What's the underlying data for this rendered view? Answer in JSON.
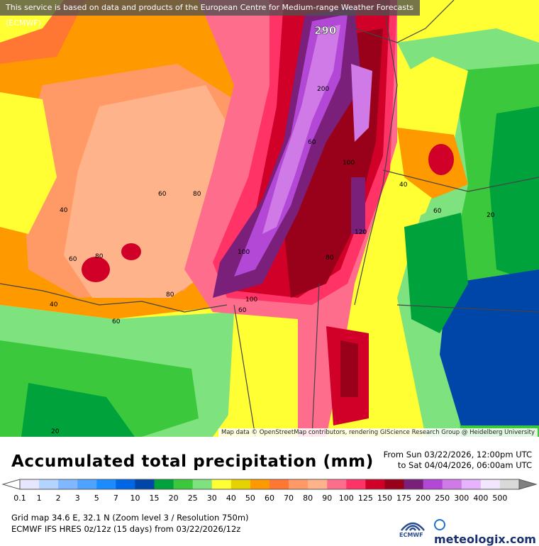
{
  "banner": "This service is based on data and products of the European Centre for Medium-range Weather Forecasts (ECMWF)",
  "attribution": "Map data © OpenStreetMap contributors, rendering GIScience Research Group @ Heidelberg University",
  "map": {
    "max_label": "290",
    "contour_labels": [
      "200",
      "100",
      "100",
      "40",
      "60",
      "60",
      "80",
      "40",
      "80",
      "60",
      "80",
      "120",
      "60",
      "80",
      "60",
      "40",
      "60",
      "100",
      "60",
      "20",
      "20"
    ]
  },
  "title": "Accumulated total precipitation (mm)",
  "period": {
    "from": "From Sun 03/22/2026, 12:00pm UTC",
    "to": "to Sat 04/04/2026, 06:00am UTC"
  },
  "legend": {
    "values": [
      "0.1",
      "1",
      "2",
      "3",
      "5",
      "7",
      "10",
      "15",
      "20",
      "25",
      "30",
      "40",
      "50",
      "60",
      "70",
      "80",
      "90",
      "100",
      "125",
      "150",
      "175",
      "200",
      "250",
      "300",
      "400",
      "500"
    ],
    "colors": [
      "#e6e6ff",
      "#b3d4ff",
      "#80b8ff",
      "#4da3ff",
      "#1a8cff",
      "#0066e6",
      "#0045a8",
      "#00a23c",
      "#3cc83c",
      "#7ee37e",
      "#ffff33",
      "#e6d200",
      "#ff9900",
      "#ff7733",
      "#ff9a66",
      "#ffb38a",
      "#ff6d8c",
      "#ff3366",
      "#d10029",
      "#99001a",
      "#7a1f7a",
      "#b347d6",
      "#cf7ae6",
      "#e6b3ff",
      "#f2e6ff",
      "#d9d9d9"
    ]
  },
  "info": {
    "grid": "Grid map 34.6 E, 32.1 N (Zoom level 3 / Resolution 750m)",
    "model": "ECMWF IFS HRES 0z/12z (15 days)  from  03/22/2026/12z"
  },
  "logos": {
    "ecmwf": "ECMWF",
    "brand": "meteologix.com"
  }
}
